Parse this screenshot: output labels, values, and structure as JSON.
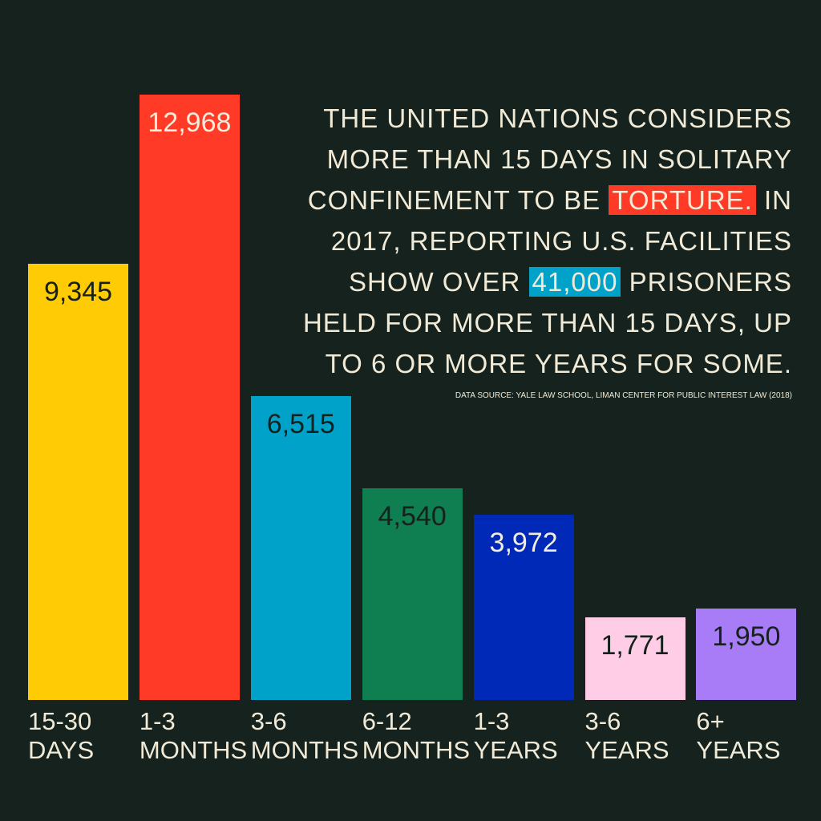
{
  "chart_data": {
    "type": "bar",
    "annotation": [
      "THE UNITED NATIONS CONSIDERS MORE THAN 15 DAYS IN SOLITARY CONFINEMENT TO BE",
      "TORTURE.",
      "IN 2017, REPORTING U.S. FACILITIES SHOW OVER",
      "41,000",
      "PRISONERS HELD FOR MORE THAN 15 DAYS, UP TO 6 OR MORE YEARS FOR SOME."
    ],
    "source": "DATA SOURCE: YALE LAW SCHOOL, LIMAN CENTER FOR PUBLIC INTEREST LAW (2018)",
    "categories": [
      "15-30 DAYS",
      "1-3 MONTHS",
      "3-6 MONTHS",
      "6-12 MONTHS",
      "1-3 YEARS",
      "3-6 YEARS",
      "6+ YEARS"
    ],
    "values": [
      9345,
      12968,
      6515,
      4540,
      3972,
      1771,
      1950
    ],
    "value_labels": [
      "9,345",
      "12,968",
      "6,515",
      "4,540",
      "3,972",
      "1,771",
      "1,950"
    ],
    "colors": [
      "#ffcb05",
      "#ff3b27",
      "#00a2ca",
      "#0f7e50",
      "#0029b8",
      "#ffcde6",
      "#a87cf6"
    ],
    "value_label_colors": [
      "#15211d",
      "#f3eddc",
      "#15211d",
      "#15211d",
      "#f3eddc",
      "#15211d",
      "#15211d"
    ]
  }
}
